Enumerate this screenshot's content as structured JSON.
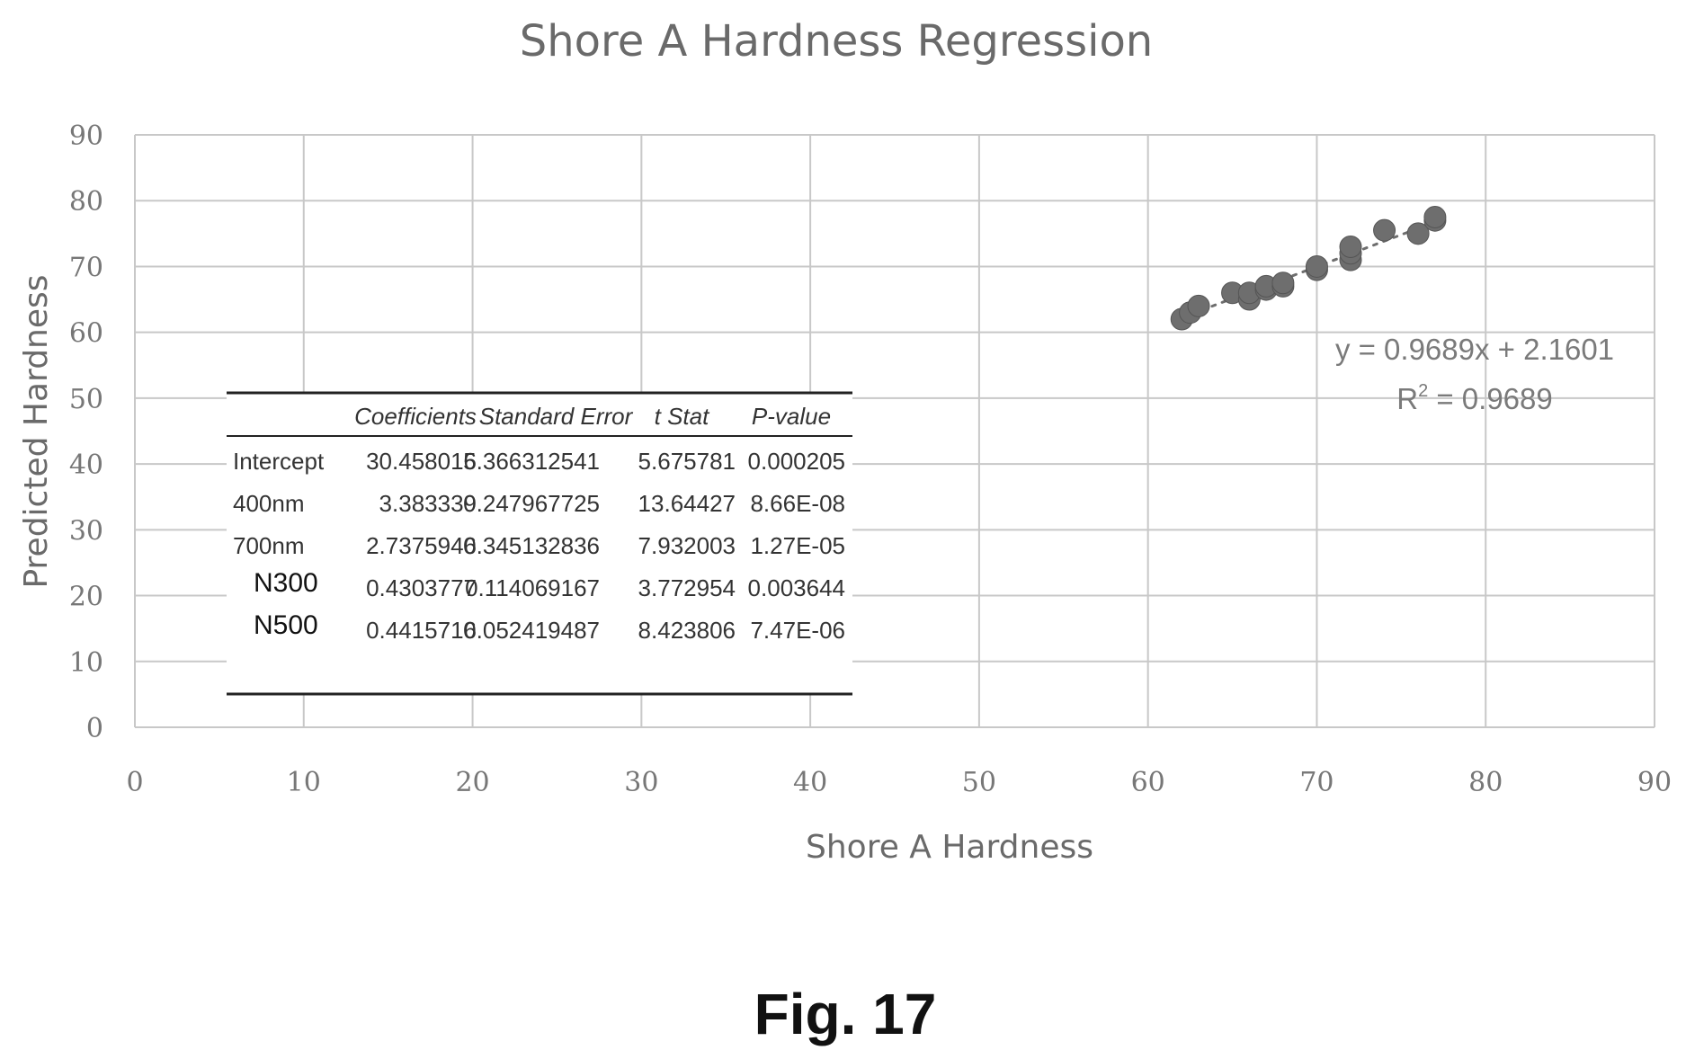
{
  "chart_data": {
    "type": "scatter",
    "title": "Shore A Hardness Regression",
    "xlabel": "Shore A Hardness",
    "ylabel": "Predicted Hardness",
    "xlim": [
      0,
      90
    ],
    "ylim": [
      0,
      90
    ],
    "x_ticks": [
      "0",
      "10",
      "20",
      "30",
      "40",
      "50",
      "60",
      "70",
      "80",
      "90"
    ],
    "y_ticks": [
      "0",
      "10",
      "20",
      "30",
      "40",
      "50",
      "60",
      "70",
      "80",
      "90"
    ],
    "grid": true,
    "points": [
      {
        "x": 62,
        "y": 62
      },
      {
        "x": 62.5,
        "y": 63
      },
      {
        "x": 63,
        "y": 64
      },
      {
        "x": 65,
        "y": 66
      },
      {
        "x": 66,
        "y": 65
      },
      {
        "x": 66,
        "y": 66
      },
      {
        "x": 67,
        "y": 66.5
      },
      {
        "x": 67,
        "y": 67
      },
      {
        "x": 68,
        "y": 67
      },
      {
        "x": 68,
        "y": 67.5
      },
      {
        "x": 70,
        "y": 69.5
      },
      {
        "x": 70,
        "y": 70
      },
      {
        "x": 72,
        "y": 71
      },
      {
        "x": 72,
        "y": 72
      },
      {
        "x": 72,
        "y": 73
      },
      {
        "x": 74,
        "y": 75.5
      },
      {
        "x": 76,
        "y": 75
      },
      {
        "x": 77,
        "y": 77
      },
      {
        "x": 77,
        "y": 77.5
      }
    ],
    "trendline": {
      "slope": 0.9689,
      "intercept": 2.1601,
      "equation_label": "y = 0.9689x + 2.1601",
      "r2_prefix": "R",
      "r2_sup": "2",
      "r2_value": " = 0.9689"
    },
    "marker_color": "#6e6e6e",
    "grid_color": "#c8c8c8",
    "regression_table": {
      "headers": [
        "",
        "Coefficients",
        "Standard Error",
        "t Stat",
        "P-value"
      ],
      "rows": [
        [
          "Intercept",
          "30.458016",
          "5.366312541",
          "5.675781",
          "0.000205"
        ],
        [
          "400nm",
          "3.383339",
          "0.247967725",
          "13.64427",
          "8.66E-08"
        ],
        [
          "700nm",
          "2.7375946",
          "0.345132836",
          "7.932003",
          "1.27E-05"
        ],
        [
          "N300",
          "0.4303777",
          "0.114069167",
          "3.772954",
          "0.003644"
        ],
        [
          "N500",
          "0.4415716",
          "0.052419487",
          "8.423806",
          "7.47E-06"
        ]
      ]
    }
  },
  "figure_label": "Fig. 17"
}
